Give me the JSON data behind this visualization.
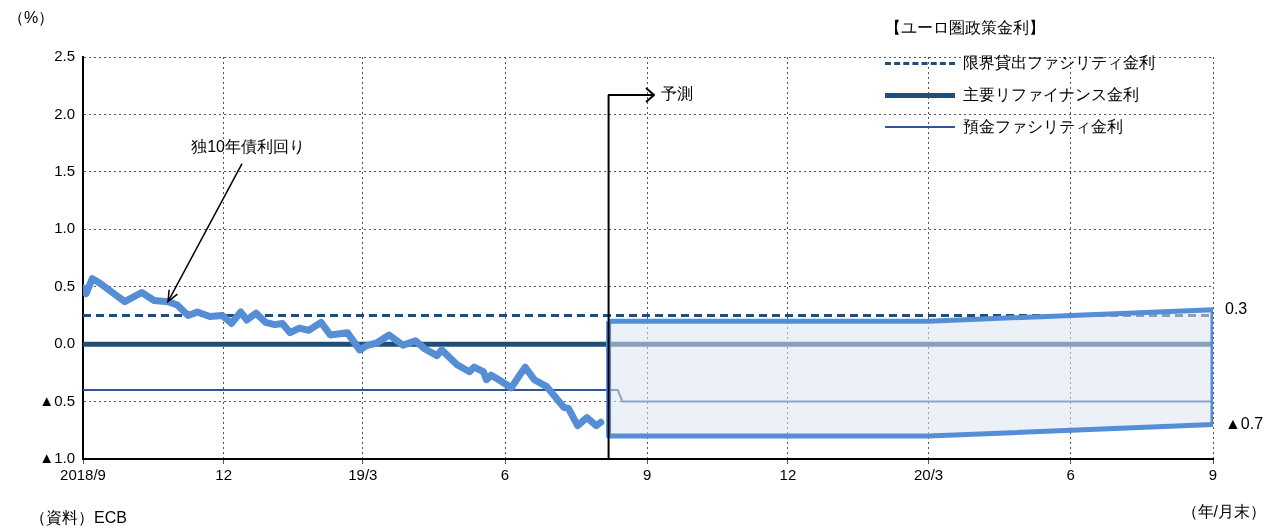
{
  "chart_data": {
    "type": "line",
    "ylabel": "（%）",
    "xlabel": "（年/月末）",
    "legend_title": "【ユーロ圏政策金利】",
    "xlim": [
      "2018-09",
      "2020-09"
    ],
    "xticks": [
      {
        "value": "2018-09",
        "label": "2018/9"
      },
      {
        "value": "2018-12",
        "label": "12"
      },
      {
        "value": "2019-03",
        "label": "19/3"
      },
      {
        "value": "2019-06",
        "label": "6"
      },
      {
        "value": "2019-09",
        "label": "9"
      },
      {
        "value": "2019-12",
        "label": "12"
      },
      {
        "value": "2020-03",
        "label": "20/3"
      },
      {
        "value": "2020-06",
        "label": "6"
      },
      {
        "value": "2020-09",
        "label": "9"
      }
    ],
    "ylim": [
      -1.0,
      2.5
    ],
    "yticks": [
      {
        "value": -1.0,
        "label": "▲1.0"
      },
      {
        "value": -0.5,
        "label": "▲0.5"
      },
      {
        "value": 0,
        "label": "0.0"
      },
      {
        "value": 0.5,
        "label": "0.5"
      },
      {
        "value": 1.0,
        "label": "1.0"
      },
      {
        "value": 1.5,
        "label": "1.5"
      },
      {
        "value": 2.0,
        "label": "2.0"
      },
      {
        "value": 2.5,
        "label": "2.5"
      }
    ],
    "grid": true,
    "legend": "top right",
    "marker": "none",
    "series": [
      {
        "type": "line",
        "color": "#558ed5",
        "x": [
          "2018-09-01",
          "2018-09-03",
          "2018-09-07",
          "2018-09-12",
          "2018-09-20",
          "2018-09-28",
          "2018-10-09",
          "2018-10-17",
          "2018-10-26",
          "2018-11-01",
          "2018-11-08",
          "2018-11-14",
          "2018-11-22",
          "2018-11-30",
          "2018-12-06",
          "2018-12-12",
          "2018-12-16",
          "2018-12-22",
          "2018-12-28",
          "2019-01-03",
          "2019-01-08",
          "2019-01-13",
          "2019-01-19",
          "2019-01-25",
          "2019-02-02",
          "2019-02-08",
          "2019-02-19",
          "2019-02-27",
          "2019-03-04",
          "2019-03-10",
          "2019-03-18",
          "2019-03-27",
          "2019-04-04",
          "2019-04-10",
          "2019-04-18",
          "2019-04-21",
          "2019-05-01",
          "2019-05-09",
          "2019-05-12",
          "2019-05-18",
          "2019-05-20",
          "2019-05-23",
          "2019-05-28",
          "2019-06-05",
          "2019-06-14",
          "2019-06-20",
          "2019-06-28",
          "2019-07-09",
          "2019-07-12",
          "2019-07-18",
          "2019-07-24",
          "2019-07-30",
          "2019-08-02"
        ],
        "values": [
          0.49,
          0.44,
          0.57,
          0.53,
          0.45,
          0.37,
          0.45,
          0.38,
          0.37,
          0.34,
          0.25,
          0.28,
          0.24,
          0.25,
          0.18,
          0.28,
          0.21,
          0.27,
          0.19,
          0.17,
          0.18,
          0.1,
          0.14,
          0.12,
          0.19,
          0.08,
          0.1,
          -0.05,
          -0.01,
          0.01,
          0.08,
          -0.01,
          0.03,
          -0.04,
          -0.1,
          -0.05,
          -0.18,
          -0.24,
          -0.2,
          -0.24,
          -0.31,
          -0.27,
          -0.31,
          -0.38,
          -0.2,
          -0.31,
          -0.37,
          -0.55,
          -0.56,
          -0.71,
          -0.64,
          -0.71,
          -0.68
        ]
      },
      {
        "name": "限界貸出ファシリティ金利",
        "color": "#1f4e79",
        "line_style": "dashed",
        "x": [
          "2018-09-01",
          "2020-09-01"
        ],
        "values": [
          0.25,
          0.25
        ]
      },
      {
        "name": "主要リファイナンス金利",
        "color": "#1f4e79",
        "x": [
          "2018-09-01",
          "2020-09-01"
        ],
        "values": [
          0,
          0
        ]
      },
      {
        "name": "預金ファシリティ金利",
        "color": "#2f5597",
        "x": [
          "2018-09-01",
          "2019-08-13",
          "2019-08-16",
          "2020-09-01"
        ],
        "values": [
          -0.4,
          -0.4,
          -0.5,
          -0.5
        ]
      },
      {
        "type": "area",
        "color": "#558ed5",
        "x": [
          "2019-08-07",
          "2020-03-01",
          "2020-09-01",
          "2020-09-01",
          "2020-03-01",
          "2019-08-07",
          "2019-08-07"
        ],
        "values": [
          0.2,
          0.2,
          0.3,
          -0.7,
          -0.8,
          -0.8,
          0.2
        ]
      }
    ],
    "ref_lines": [
      {
        "axis": "x",
        "value": "2019-08-07",
        "label": "予測",
        "color": "#000000"
      }
    ],
    "annotations": [
      {
        "text": "独10年債利回り",
        "x": "2018-10-26",
        "y": 0.37
      },
      {
        "text": "0.3",
        "x": "2020-09",
        "y": 0.3
      },
      {
        "text": "▲0.7",
        "x": "2020-09",
        "y": -0.7
      },
      "（資料）ECB"
    ]
  }
}
